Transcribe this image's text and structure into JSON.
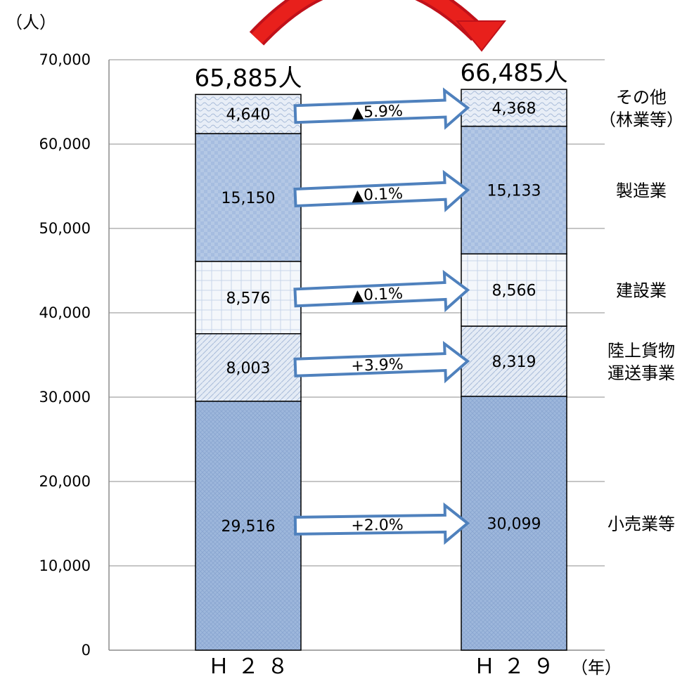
{
  "chart_data": {
    "type": "bar",
    "stacked": true,
    "ylabel": "（人）",
    "xlabel": "（年）",
    "ylim": [
      0,
      70000
    ],
    "yticks": [
      0,
      10000,
      20000,
      30000,
      40000,
      50000,
      60000,
      70000
    ],
    "ytick_labels": [
      "0",
      "10,000",
      "20,000",
      "30,000",
      "40,000",
      "50,000",
      "60,000",
      "70,000"
    ],
    "categories": [
      "Ｈ２８",
      "Ｈ２９"
    ],
    "totals": [
      65885,
      66485
    ],
    "total_labels": [
      "65,885人",
      "66,485人"
    ],
    "grid": true,
    "series": [
      {
        "name": "小売業等",
        "values": [
          29516,
          30099
        ],
        "labels": [
          "29,516",
          "30,099"
        ],
        "color": "#9db7dc",
        "change": "+2.0%"
      },
      {
        "name": "陸上貨物\n運送事業",
        "values": [
          8003,
          8319
        ],
        "labels": [
          "8,003",
          "8,319"
        ],
        "color": "#dfe7f3",
        "change": "+3.9%"
      },
      {
        "name": "建設業",
        "values": [
          8576,
          8566
        ],
        "labels": [
          "8,576",
          "8,566"
        ],
        "color": "#f1f5fb",
        "change": "▲0.1%"
      },
      {
        "name": "製造業",
        "values": [
          15150,
          15133
        ],
        "labels": [
          "15,150",
          "15,133"
        ],
        "color": "#b1c6e4",
        "change": "▲0.1%"
      },
      {
        "name": "その他\n（林業等）",
        "values": [
          4640,
          4368
        ],
        "labels": [
          "4,640",
          "4,368"
        ],
        "color": "#e3ebf6",
        "change": "▲5.9%"
      }
    ],
    "arrow_color": "#4f81bd",
    "curved_arrow_color": "#e8201c"
  }
}
